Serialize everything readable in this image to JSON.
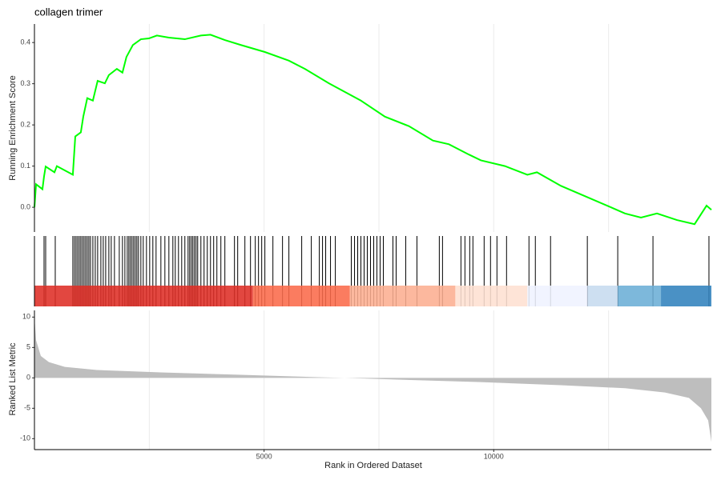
{
  "chart_data": [
    {
      "type": "line",
      "title": "collagen trimer",
      "y_label": "Running Enrichment Score",
      "color": "#00ff00",
      "x": [
        0,
        35,
        174,
        209,
        244,
        436,
        488,
        836,
        889,
        1010,
        1063,
        1150,
        1272,
        1376,
        1533,
        1620,
        1794,
        1916,
        2003,
        2143,
        2317,
        2491,
        2666,
        2927,
        3275,
        3624,
        3833,
        4146,
        4495,
        5017,
        5540,
        5889,
        6411,
        7108,
        7631,
        8153,
        8676,
        9024,
        9460,
        9721,
        10244,
        10732,
        10941,
        11463,
        11986,
        12509,
        12857,
        13206,
        13554,
        13990,
        14373,
        14634,
        14739
      ],
      "values": [
        0,
        0.056,
        0.044,
        0.075,
        0.099,
        0.085,
        0.1,
        0.079,
        0.172,
        0.182,
        0.22,
        0.265,
        0.259,
        0.307,
        0.301,
        0.321,
        0.336,
        0.327,
        0.365,
        0.394,
        0.408,
        0.41,
        0.417,
        0.412,
        0.408,
        0.417,
        0.419,
        0.406,
        0.394,
        0.377,
        0.356,
        0.336,
        0.301,
        0.259,
        0.22,
        0.197,
        0.162,
        0.153,
        0.128,
        0.114,
        0.1,
        0.079,
        0.085,
        0.052,
        0.027,
        0.002,
        -0.015,
        -0.025,
        -0.015,
        -0.031,
        -0.041,
        0.004,
        -0.006
      ],
      "xlim": [
        0,
        14739
      ],
      "ylim": [
        -0.06,
        0.445
      ],
      "yticks": [
        {
          "value": 0,
          "label": "0.0"
        },
        0.1,
        0.2,
        0.3,
        0.4
      ],
      "xgrid": [
        2500,
        5000,
        7500,
        10000,
        12500
      ]
    },
    {
      "type": "rug",
      "color": "#000000",
      "x": [
        209,
        244,
        453,
        836,
        871,
        906,
        941,
        976,
        1010,
        1045,
        1080,
        1115,
        1150,
        1185,
        1220,
        1272,
        1324,
        1376,
        1446,
        1498,
        1551,
        1620,
        1672,
        1742,
        1847,
        1916,
        1969,
        2021,
        2056,
        2090,
        2125,
        2160,
        2195,
        2230,
        2265,
        2317,
        2369,
        2439,
        2509,
        2578,
        2648,
        2753,
        2840,
        2927,
        3014,
        3066,
        3136,
        3206,
        3275,
        3345,
        3380,
        3415,
        3449,
        3484,
        3519,
        3554,
        3624,
        3693,
        3763,
        3833,
        3902,
        3972,
        4059,
        4146,
        4355,
        4425,
        4582,
        4704,
        4808,
        4878,
        4948,
        5017,
        5192,
        5401,
        5540,
        5819,
        6028,
        6202,
        6272,
        6341,
        6446,
        6551,
        6899,
        6969,
        7038,
        7108,
        7178,
        7247,
        7317,
        7387,
        7456,
        7526,
        7596,
        7805,
        7875,
        8084,
        8328,
        8815,
        8885,
        9286,
        9373,
        9477,
        9547,
        9791,
        9930,
        10070,
        10279,
        10767,
        10906,
        11237,
        12038,
        12700,
        13467,
        14686
      ],
      "band_edges": [
        0,
        4756,
        6864,
        9164,
        10732,
        12038,
        12700,
        13641,
        14739
      ],
      "band_colors": [
        "#de2d26",
        "#fb6a4a",
        "#fcae91",
        "#fee0d2",
        "#eff3ff",
        "#c6dbef",
        "#6baed6",
        "#3182bd"
      ],
      "xlim": [
        0,
        14739
      ]
    },
    {
      "type": "area",
      "y_label": "Ranked List Metric",
      "x_label": "Rank in Ordered Dataset",
      "color": "#bebebe",
      "x": [
        0,
        35,
        139,
        314,
        662,
        1359,
        2753,
        4495,
        6237,
        6760,
        7979,
        9721,
        11463,
        12857,
        13728,
        14250,
        14512,
        14669,
        14739
      ],
      "values": [
        10,
        6.2,
        3.6,
        2.6,
        1.8,
        1.3,
        0.9,
        0.5,
        0.1,
        0,
        -0.3,
        -0.7,
        -1.2,
        -1.7,
        -2.4,
        -3.3,
        -5,
        -7,
        -10.5
      ],
      "xlim": [
        0,
        14739
      ],
      "ylim": [
        -11.8,
        11.1
      ],
      "yticks": [
        10,
        5,
        0,
        -5,
        -10
      ],
      "xticks": [
        5000,
        10000
      ],
      "xgrid": [
        2500,
        5000,
        7500,
        10000,
        12500
      ]
    }
  ]
}
